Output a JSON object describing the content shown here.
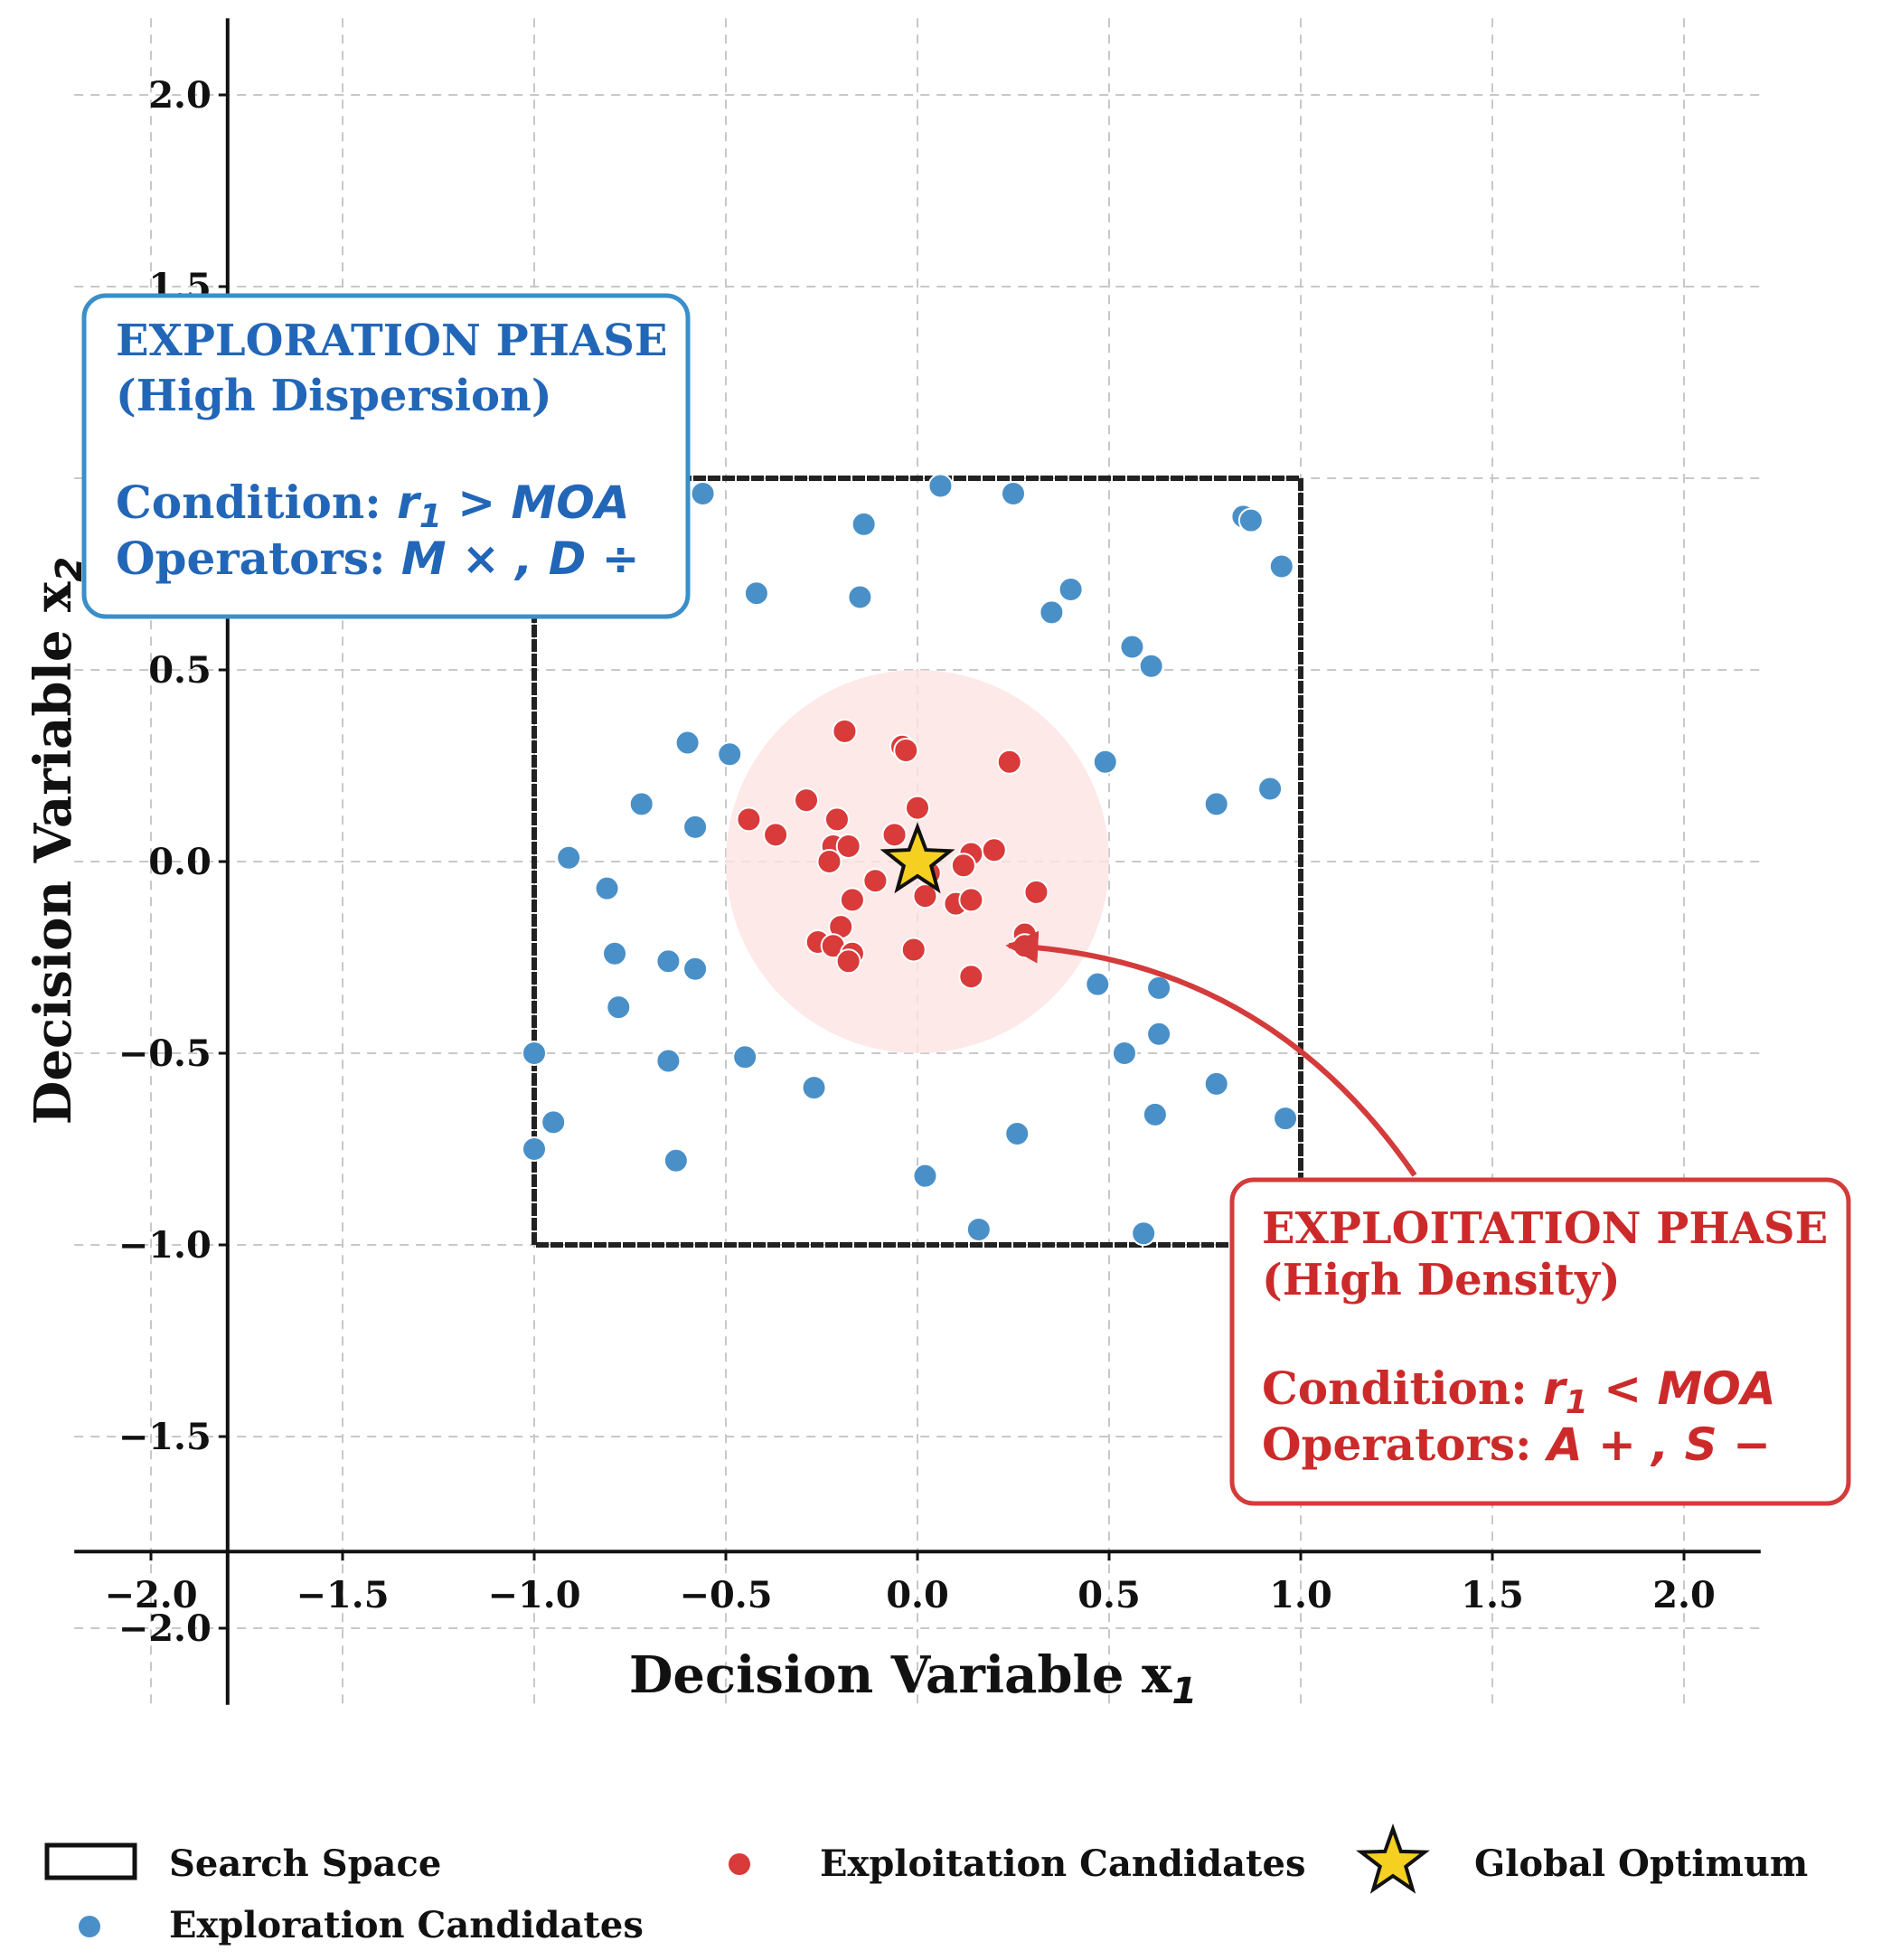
{
  "chart_data": {
    "type": "scatter",
    "xlabel": "Decision Variable x",
    "xlabel_sub": "1",
    "ylabel": "Decision Variable x",
    "ylabel_sub": "2",
    "xlim": [
      -2.2,
      2.2
    ],
    "ylim": [
      -2.2,
      2.2
    ],
    "xticks": [
      -2.0,
      -1.5,
      -1.0,
      -0.5,
      0.0,
      0.5,
      1.0,
      1.5,
      2.0
    ],
    "xtick_labels": [
      "−2.0",
      "−1.5",
      "−1.0",
      "−0.5",
      "0.0",
      "0.5",
      "1.0",
      "1.5",
      "2.0"
    ],
    "yticks": [
      -2.0,
      -1.5,
      -1.0,
      -0.5,
      0.0,
      0.5,
      1.0,
      1.5,
      2.0
    ],
    "ytick_labels": [
      "−2.0",
      "−1.5",
      "−1.0",
      "−0.5",
      "0.0",
      "0.5",
      "1.0",
      "1.5",
      "2.0"
    ],
    "grid": true,
    "search_space": {
      "x": [
        -1.0,
        1.0
      ],
      "y": [
        -1.0,
        1.0
      ]
    },
    "exploitation_zone": {
      "center": [
        0.0,
        0.0
      ],
      "radius": 0.5
    },
    "global_optimum": [
      0.0,
      0.0
    ],
    "series": [
      {
        "name": "Exploration Candidates",
        "color": "#4a90c8",
        "points": [
          [
            -0.56,
            0.96
          ],
          [
            0.06,
            0.98
          ],
          [
            0.25,
            0.96
          ],
          [
            -0.14,
            0.88
          ],
          [
            0.85,
            0.9
          ],
          [
            0.87,
            0.89
          ],
          [
            0.95,
            0.77
          ],
          [
            -0.42,
            0.7
          ],
          [
            -0.15,
            0.69
          ],
          [
            0.4,
            0.71
          ],
          [
            0.35,
            0.65
          ],
          [
            0.56,
            0.56
          ],
          [
            0.61,
            0.51
          ],
          [
            -0.6,
            0.31
          ],
          [
            -0.49,
            0.28
          ],
          [
            0.49,
            0.26
          ],
          [
            0.92,
            0.19
          ],
          [
            0.78,
            0.15
          ],
          [
            -0.72,
            0.15
          ],
          [
            -0.58,
            0.09
          ],
          [
            -0.91,
            0.01
          ],
          [
            -0.81,
            -0.07
          ],
          [
            -0.79,
            -0.24
          ],
          [
            -0.65,
            -0.26
          ],
          [
            -0.58,
            -0.28
          ],
          [
            -0.78,
            -0.38
          ],
          [
            0.47,
            -0.32
          ],
          [
            0.63,
            -0.33
          ],
          [
            0.63,
            -0.45
          ],
          [
            0.54,
            -0.5
          ],
          [
            -1.0,
            -0.5
          ],
          [
            -0.65,
            -0.52
          ],
          [
            -0.45,
            -0.51
          ],
          [
            -0.27,
            -0.59
          ],
          [
            0.78,
            -0.58
          ],
          [
            0.62,
            -0.66
          ],
          [
            0.96,
            -0.67
          ],
          [
            -0.95,
            -0.68
          ],
          [
            0.26,
            -0.71
          ],
          [
            -1.0,
            -0.75
          ],
          [
            -0.63,
            -0.78
          ],
          [
            0.02,
            -0.82
          ],
          [
            0.16,
            -0.96
          ],
          [
            0.59,
            -0.97
          ]
        ]
      },
      {
        "name": "Exploitation Candidates",
        "color": "#d93a3a",
        "points": [
          [
            -0.19,
            0.34
          ],
          [
            -0.04,
            0.3
          ],
          [
            -0.03,
            0.29
          ],
          [
            0.24,
            0.26
          ],
          [
            -0.29,
            0.16
          ],
          [
            0.0,
            0.14
          ],
          [
            -0.44,
            0.11
          ],
          [
            -0.21,
            0.11
          ],
          [
            -0.06,
            0.07
          ],
          [
            -0.37,
            0.07
          ],
          [
            -0.22,
            0.04
          ],
          [
            -0.18,
            0.04
          ],
          [
            0.14,
            0.02
          ],
          [
            0.2,
            0.03
          ],
          [
            -0.23,
            0.0
          ],
          [
            0.12,
            -0.01
          ],
          [
            -0.11,
            -0.05
          ],
          [
            0.03,
            -0.03
          ],
          [
            -0.17,
            -0.1
          ],
          [
            0.02,
            -0.09
          ],
          [
            0.1,
            -0.11
          ],
          [
            0.14,
            -0.1
          ],
          [
            0.31,
            -0.08
          ],
          [
            -0.2,
            -0.17
          ],
          [
            0.28,
            -0.19
          ],
          [
            -0.26,
            -0.21
          ],
          [
            -0.22,
            -0.22
          ],
          [
            0.28,
            -0.22
          ],
          [
            -0.17,
            -0.24
          ],
          [
            -0.18,
            -0.26
          ],
          [
            -0.01,
            -0.23
          ],
          [
            0.14,
            -0.3
          ]
        ]
      }
    ],
    "annotations": [
      {
        "id": "exploration",
        "title_line1": "EXPLORATION PHASE",
        "title_line2": "(High Dispersion)",
        "condition_label": "Condition: ",
        "condition_expr_var": "r",
        "condition_expr_sub": "1",
        "condition_expr_rest": " > MOA",
        "operators_label": "Operators: ",
        "operators_expr": "M × , D ÷",
        "color": "#2266b8",
        "border_color": "#3a8fc9"
      },
      {
        "id": "exploitation",
        "title_line1": "EXPLOITATION PHASE",
        "title_line2": "(High Density)",
        "condition_label": "Condition: ",
        "condition_expr_var": "r",
        "condition_expr_sub": "1",
        "condition_expr_rest": " < MOA",
        "operators_label": "Operators: ",
        "operators_expr": "A + , S −",
        "color": "#cc2a2a",
        "border_color": "#d43b3b"
      }
    ],
    "legend": {
      "position": "bottom",
      "items": [
        {
          "label": "Search Space",
          "marker": "square"
        },
        {
          "label": "Exploitation Candidates",
          "marker": "red-dot"
        },
        {
          "label": "Global Optimum",
          "marker": "star"
        },
        {
          "label": "Exploration Candidates",
          "marker": "blue-dot"
        }
      ]
    }
  }
}
